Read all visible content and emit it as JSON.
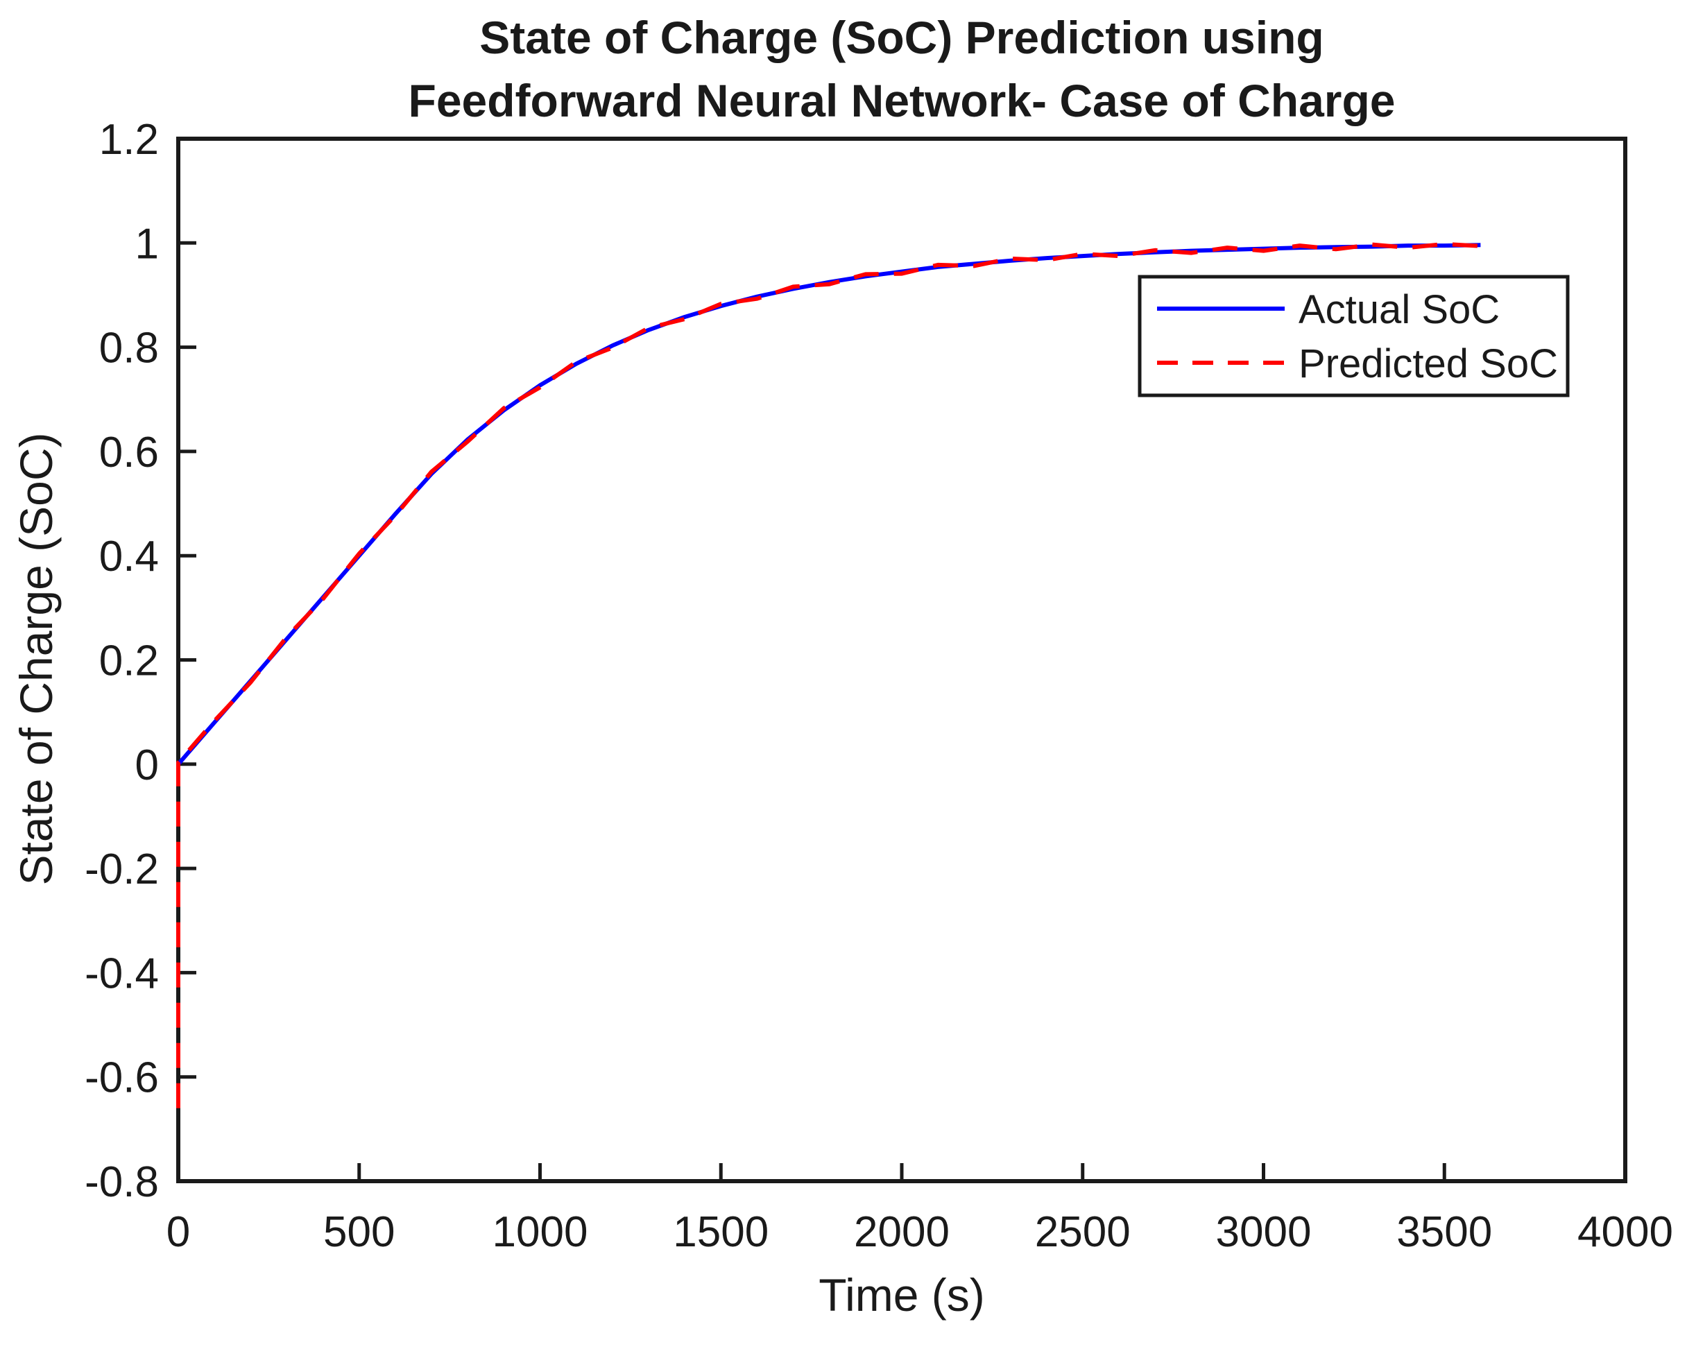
{
  "figure": {
    "title_line1": "State of Charge (SoC) Prediction using",
    "title_line2": "Feedforward Neural Network- Case of Charge",
    "background_color": "#ffffff",
    "axis_color": "#1a1a1a"
  },
  "axes": {
    "xlabel": "Time (s)",
    "ylabel": "State of Charge (SoC)"
  },
  "legend": {
    "position": "upper right",
    "items": [
      {
        "label": "Actual SoC",
        "color": "#0000ff",
        "style": "solid"
      },
      {
        "label": "Predicted SoC",
        "color": "#ff0000",
        "style": "dashed"
      }
    ]
  },
  "chart_data": {
    "type": "line",
    "title": "State of Charge (SoC) Prediction using Feedforward Neural Network- Case of Charge",
    "xlabel": "Time (s)",
    "ylabel": "State of Charge (SoC)",
    "xlim": [
      0,
      4000
    ],
    "ylim": [
      -0.8,
      1.2
    ],
    "grid": false,
    "legend_position": "upper right",
    "x_tick_values": [
      0,
      500,
      1000,
      1500,
      2000,
      2500,
      3000,
      3500,
      4000
    ],
    "x_tick_labels": [
      "0",
      "500",
      "1000",
      "1500",
      "2000",
      "2500",
      "3000",
      "3500",
      "4000"
    ],
    "y_tick_values": [
      -0.8,
      -0.6,
      -0.4,
      -0.2,
      0,
      0.2,
      0.4,
      0.6,
      0.8,
      1,
      1.2
    ],
    "y_tick_labels": [
      "-0.8",
      "-0.6",
      "-0.4",
      "-0.2",
      "0",
      "0.2",
      "0.4",
      "0.6",
      "0.8",
      "1",
      "1.2"
    ],
    "series": [
      {
        "name": "Actual SoC",
        "color": "#0000ff",
        "style": "solid",
        "x": [
          0,
          100,
          200,
          300,
          400,
          500,
          600,
          700,
          800,
          900,
          1000,
          1100,
          1200,
          1300,
          1400,
          1500,
          1600,
          1700,
          1800,
          1900,
          2000,
          2100,
          2200,
          2300,
          2400,
          2500,
          2600,
          2700,
          2800,
          2900,
          3000,
          3100,
          3200,
          3300,
          3400,
          3500,
          3600
        ],
        "y": [
          0.0,
          0.08,
          0.16,
          0.24,
          0.32,
          0.4,
          0.48,
          0.557,
          0.623,
          0.679,
          0.727,
          0.768,
          0.803,
          0.833,
          0.858,
          0.879,
          0.897,
          0.912,
          0.925,
          0.936,
          0.945,
          0.954,
          0.96,
          0.966,
          0.971,
          0.975,
          0.979,
          0.982,
          0.985,
          0.987,
          0.989,
          0.991,
          0.992,
          0.993,
          0.995,
          0.995,
          0.996
        ]
      },
      {
        "name": "Predicted SoC",
        "color": "#ff0000",
        "style": "dashed",
        "x": [
          0,
          0,
          100,
          200,
          300,
          400,
          500,
          600,
          700,
          800,
          900,
          1000,
          1100,
          1200,
          1300,
          1400,
          1500,
          1600,
          1700,
          1800,
          1900,
          2000,
          2100,
          2200,
          2300,
          2400,
          2500,
          2600,
          2700,
          2800,
          2900,
          3000,
          3100,
          3200,
          3300,
          3400,
          3500,
          3600
        ],
        "y": [
          -0.66,
          0.003,
          0.083,
          0.157,
          0.244,
          0.317,
          0.404,
          0.477,
          0.561,
          0.619,
          0.683,
          0.723,
          0.772,
          0.799,
          0.837,
          0.854,
          0.883,
          0.893,
          0.916,
          0.921,
          0.94,
          0.941,
          0.958,
          0.956,
          0.97,
          0.967,
          0.979,
          0.975,
          0.986,
          0.981,
          0.991,
          0.985,
          0.995,
          0.988,
          0.997,
          0.991,
          0.998,
          0.994
        ]
      }
    ]
  }
}
